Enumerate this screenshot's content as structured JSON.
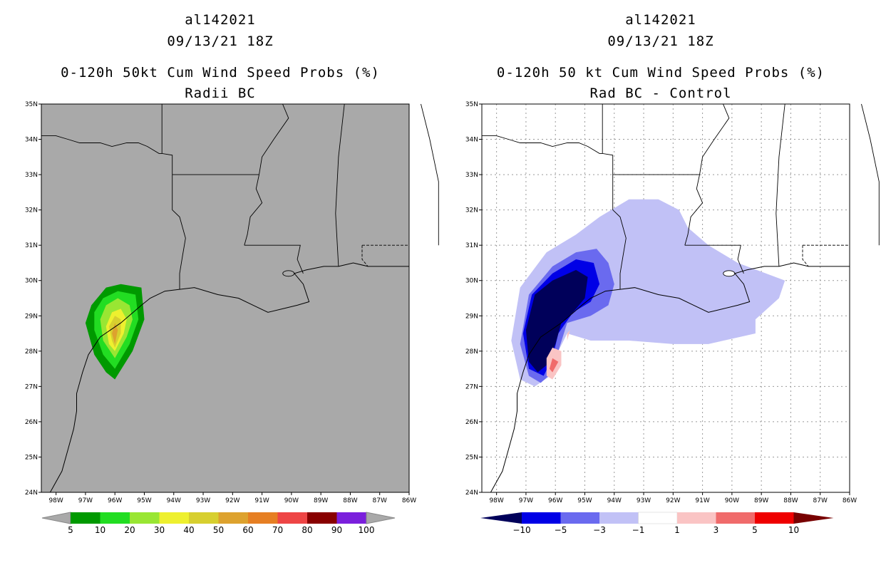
{
  "palette": {
    "grey_bg": "#a9a9a9",
    "prob_colors": [
      "#009900",
      "#22dd22",
      "#99e633",
      "#eef02f",
      "#d7cf2f",
      "#dda22e",
      "#e67f23",
      "#ee4545",
      "#880000",
      "#7a1fdc"
    ],
    "diff_colors": [
      "#00005a",
      "#0000e6",
      "#6a6aef",
      "#c1c1f6",
      "#ffffff",
      "#fac4c4",
      "#f06b6b",
      "#ef0000",
      "#780000"
    ]
  },
  "panels": [
    {
      "id": "left",
      "storm": "al142021",
      "date": "09/13/21 18Z",
      "title": "0-120h 50kt Cum Wind Speed Probs (%)",
      "subtitle": "Radii BC"
    },
    {
      "id": "right",
      "storm": "al142021",
      "date": "09/13/21 18Z",
      "title": "0-120h 50 kt Cum Wind Speed Probs (%)",
      "subtitle": "Rad BC - Control"
    }
  ],
  "chart_data": [
    {
      "type": "heatmap",
      "title": "0-120h 50kt Cum Wind Speed Probs (%)",
      "subtitle": "Radii BC",
      "xlim": [
        -98.5,
        -86
      ],
      "ylim": [
        24,
        35
      ],
      "x_ticks": [
        -98,
        -97,
        -96,
        -95,
        -94,
        -93,
        -92,
        -91,
        -90,
        -89,
        -88,
        -87,
        -86
      ],
      "x_tick_labels": [
        "98W",
        "97W",
        "96W",
        "95W",
        "94W",
        "93W",
        "92W",
        "91W",
        "90W",
        "89W",
        "88W",
        "87W",
        "86W"
      ],
      "y_ticks": [
        24,
        25,
        26,
        27,
        28,
        29,
        30,
        31,
        32,
        33,
        34,
        35
      ],
      "y_tick_labels": [
        "24N",
        "25N",
        "26N",
        "27N",
        "28N",
        "29N",
        "30N",
        "31N",
        "32N",
        "33N",
        "34N",
        "35N"
      ],
      "grid": false,
      "colorbar_levels": [
        5,
        10,
        20,
        30,
        40,
        50,
        60,
        70,
        80,
        90,
        100
      ],
      "colorbar_labels": [
        "5",
        "10",
        "20",
        "30",
        "40",
        "50",
        "60",
        "70",
        "80",
        "90",
        "100"
      ],
      "contours": [
        {
          "level": 5,
          "polygon": [
            [
              -96.0,
              27.2
            ],
            [
              -95.4,
              28.0
            ],
            [
              -95.0,
              28.9
            ],
            [
              -95.1,
              29.8
            ],
            [
              -95.8,
              29.9
            ],
            [
              -96.3,
              29.8
            ],
            [
              -96.8,
              29.3
            ],
            [
              -97.0,
              28.8
            ],
            [
              -96.7,
              27.9
            ],
            [
              -96.3,
              27.4
            ]
          ]
        },
        {
          "level": 10,
          "polygon": [
            [
              -96.0,
              27.5
            ],
            [
              -95.5,
              28.2
            ],
            [
              -95.2,
              28.9
            ],
            [
              -95.3,
              29.6
            ],
            [
              -95.9,
              29.7
            ],
            [
              -96.4,
              29.5
            ],
            [
              -96.7,
              29.1
            ],
            [
              -96.7,
              28.6
            ],
            [
              -96.4,
              27.9
            ]
          ]
        },
        {
          "level": 20,
          "polygon": [
            [
              -96.0,
              27.8
            ],
            [
              -95.6,
              28.4
            ],
            [
              -95.4,
              28.9
            ],
            [
              -95.5,
              29.3
            ],
            [
              -95.9,
              29.5
            ],
            [
              -96.3,
              29.3
            ],
            [
              -96.5,
              28.9
            ],
            [
              -96.4,
              28.3
            ]
          ]
        },
        {
          "level": 30,
          "polygon": [
            [
              -96.0,
              28.0
            ],
            [
              -95.7,
              28.5
            ],
            [
              -95.6,
              28.9
            ],
            [
              -95.8,
              29.2
            ],
            [
              -96.1,
              29.1
            ],
            [
              -96.3,
              28.7
            ],
            [
              -96.2,
              28.2
            ]
          ]
        },
        {
          "level": 40,
          "polygon": [
            [
              -96.0,
              28.1
            ],
            [
              -95.8,
              28.5
            ],
            [
              -95.8,
              28.9
            ],
            [
              -96.0,
              29.0
            ],
            [
              -96.2,
              28.7
            ],
            [
              -96.1,
              28.3
            ]
          ]
        },
        {
          "level": 50,
          "polygon": [
            [
              -96.0,
              28.2
            ],
            [
              -95.9,
              28.6
            ],
            [
              -96.0,
              28.8
            ],
            [
              -96.1,
              28.5
            ]
          ]
        }
      ]
    },
    {
      "type": "heatmap",
      "title": "0-120h 50 kt Cum Wind Speed Probs (%)",
      "subtitle": "Rad BC - Control",
      "xlim": [
        -98.5,
        -86
      ],
      "ylim": [
        24,
        35
      ],
      "x_ticks": [
        -98,
        -97,
        -96,
        -95,
        -94,
        -93,
        -92,
        -91,
        -90,
        -89,
        -88,
        -87,
        -86
      ],
      "x_tick_labels": [
        "98W",
        "97W",
        "96W",
        "95W",
        "94W",
        "93W",
        "92W",
        "91W",
        "90W",
        "89W",
        "88W",
        "87W",
        "86W"
      ],
      "y_ticks": [
        24,
        25,
        26,
        27,
        28,
        29,
        30,
        31,
        32,
        33,
        34,
        35
      ],
      "y_tick_labels": [
        "24N",
        "25N",
        "26N",
        "27N",
        "28N",
        "29N",
        "30N",
        "31N",
        "32N",
        "33N",
        "34N",
        "35N"
      ],
      "grid": true,
      "colorbar_levels": [
        -10,
        -5,
        -3,
        -1,
        1,
        3,
        5,
        10
      ],
      "colorbar_labels": [
        "−10",
        "−5",
        "−3",
        "−1",
        "1",
        "3",
        "5",
        "10"
      ],
      "contours": [
        {
          "level": -1,
          "polygon": [
            [
              -96.7,
              27.0
            ],
            [
              -97.2,
              27.2
            ],
            [
              -97.5,
              28.3
            ],
            [
              -97.2,
              29.8
            ],
            [
              -96.3,
              30.8
            ],
            [
              -95.3,
              31.3
            ],
            [
              -94.5,
              31.8
            ],
            [
              -93.5,
              32.3
            ],
            [
              -92.5,
              32.3
            ],
            [
              -91.8,
              32.0
            ],
            [
              -91.5,
              31.5
            ],
            [
              -90.8,
              31.0
            ],
            [
              -89.8,
              30.5
            ],
            [
              -88.2,
              30.0
            ],
            [
              -88.4,
              29.5
            ],
            [
              -89.2,
              28.9
            ],
            [
              -89.2,
              28.5
            ],
            [
              -90.8,
              28.2
            ],
            [
              -92.0,
              28.2
            ],
            [
              -93.5,
              28.3
            ],
            [
              -94.8,
              28.3
            ],
            [
              -95.6,
              28.5
            ],
            [
              -95.9,
              28.0
            ],
            [
              -96.0,
              27.4
            ]
          ]
        },
        {
          "level": -3,
          "polygon": [
            [
              -96.5,
              27.1
            ],
            [
              -96.9,
              27.3
            ],
            [
              -97.2,
              28.2
            ],
            [
              -96.9,
              29.6
            ],
            [
              -96.1,
              30.4
            ],
            [
              -95.3,
              30.8
            ],
            [
              -94.6,
              30.9
            ],
            [
              -94.2,
              30.5
            ],
            [
              -94.0,
              29.9
            ],
            [
              -94.2,
              29.3
            ],
            [
              -94.8,
              29.0
            ],
            [
              -95.6,
              28.8
            ],
            [
              -95.9,
              28.0
            ],
            [
              -96.1,
              27.4
            ]
          ]
        },
        {
          "level": -5,
          "polygon": [
            [
              -96.4,
              27.3
            ],
            [
              -96.9,
              27.5
            ],
            [
              -97.1,
              28.5
            ],
            [
              -96.8,
              29.6
            ],
            [
              -96.1,
              30.2
            ],
            [
              -95.3,
              30.6
            ],
            [
              -94.7,
              30.5
            ],
            [
              -94.5,
              29.9
            ],
            [
              -94.8,
              29.4
            ],
            [
              -95.4,
              29.1
            ],
            [
              -95.9,
              28.5
            ],
            [
              -96.1,
              27.8
            ]
          ]
        },
        {
          "level": -10,
          "polygon": [
            [
              -96.6,
              27.4
            ],
            [
              -96.9,
              27.7
            ],
            [
              -97.0,
              28.6
            ],
            [
              -96.7,
              29.6
            ],
            [
              -96.1,
              30.0
            ],
            [
              -95.3,
              30.3
            ],
            [
              -94.9,
              30.1
            ],
            [
              -95.0,
              29.5
            ],
            [
              -95.4,
              29.1
            ],
            [
              -95.8,
              28.8
            ],
            [
              -96.0,
              28.2
            ],
            [
              -96.3,
              27.6
            ]
          ]
        },
        {
          "level": 1,
          "polygon": [
            [
              -96.1,
              27.2
            ],
            [
              -95.8,
              27.6
            ],
            [
              -95.8,
              28.0
            ],
            [
              -96.1,
              28.1
            ],
            [
              -96.3,
              27.8
            ],
            [
              -96.3,
              27.3
            ]
          ]
        },
        {
          "level": 1,
          "polygon": [
            [
              -95.6,
              28.3
            ],
            [
              -95.5,
              28.6
            ],
            [
              -95.6,
              28.5
            ]
          ]
        },
        {
          "level": 3,
          "polygon": [
            [
              -96.1,
              27.4
            ],
            [
              -95.9,
              27.7
            ],
            [
              -96.1,
              27.8
            ],
            [
              -96.2,
              27.5
            ]
          ]
        }
      ]
    }
  ]
}
